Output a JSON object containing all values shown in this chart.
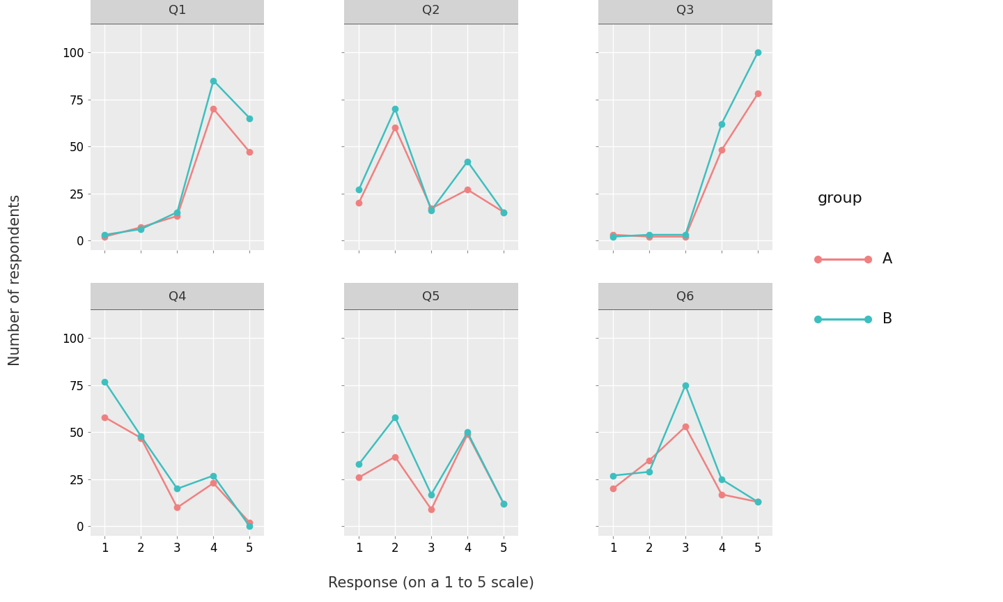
{
  "panels": [
    "Q1",
    "Q2",
    "Q3",
    "Q4",
    "Q5",
    "Q6"
  ],
  "x": [
    1,
    2,
    3,
    4,
    5
  ],
  "series": {
    "A": {
      "color": "#F08080",
      "Q1": [
        2,
        7,
        13,
        70,
        47
      ],
      "Q2": [
        20,
        60,
        17,
        27,
        15
      ],
      "Q3": [
        3,
        2,
        2,
        48,
        78
      ],
      "Q4": [
        58,
        47,
        10,
        23,
        2
      ],
      "Q5": [
        26,
        37,
        9,
        49,
        12
      ],
      "Q6": [
        20,
        35,
        53,
        17,
        13
      ]
    },
    "B": {
      "color": "#3DBFBF",
      "Q1": [
        3,
        6,
        15,
        85,
        65
      ],
      "Q2": [
        27,
        70,
        16,
        42,
        15
      ],
      "Q3": [
        2,
        3,
        3,
        62,
        100
      ],
      "Q4": [
        77,
        48,
        20,
        27,
        0
      ],
      "Q5": [
        33,
        58,
        17,
        50,
        12
      ],
      "Q6": [
        27,
        29,
        75,
        25,
        13
      ]
    }
  },
  "xlabel": "Response (on a 1 to 5 scale)",
  "ylabel": "Number of respondents",
  "legend_title": "group",
  "legend_labels": [
    "A",
    "B"
  ],
  "ylim": [
    -5,
    115
  ],
  "yticks": [
    0,
    25,
    50,
    75,
    100
  ],
  "xticks": [
    1,
    2,
    3,
    4,
    5
  ],
  "panel_bg": "#EBEBEB",
  "header_bg": "#D3D3D3",
  "header_border": "#555555",
  "grid_color": "#FFFFFF",
  "fig_bg": "#FFFFFF",
  "title_fontsize": 13,
  "label_fontsize": 14,
  "tick_fontsize": 12,
  "legend_title_fontsize": 14,
  "legend_fontsize": 13,
  "marker": "o",
  "marker_size": 6,
  "line_width": 1.8
}
